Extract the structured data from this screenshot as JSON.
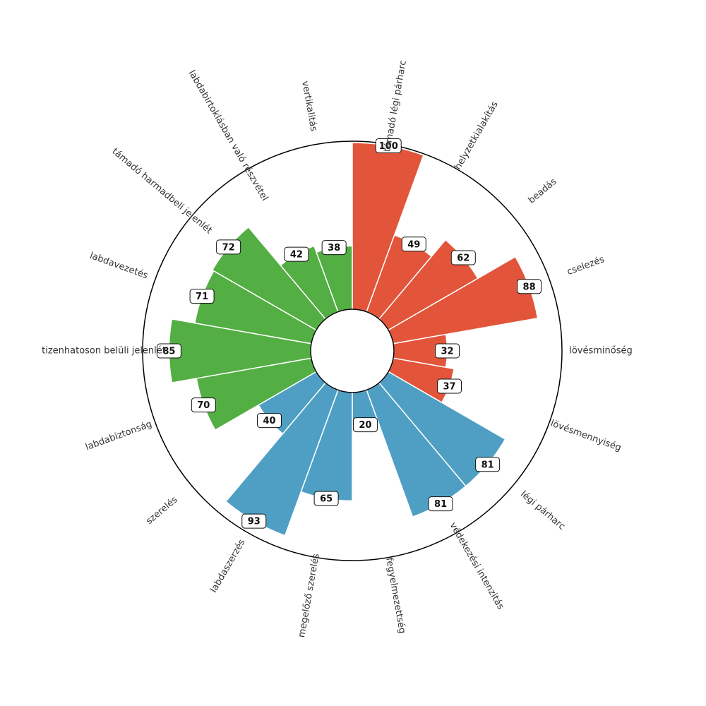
{
  "chart_data": {
    "type": "polar-bar",
    "max_value": 100,
    "colors": {
      "attack": "#e2553a",
      "defense": "#4f9fc4",
      "possession": "#53ae43"
    },
    "categories": [
      {
        "label": "támadó légi párharc",
        "value": 100,
        "group": "attack"
      },
      {
        "label": "helyzetkialakítás",
        "value": 49,
        "group": "attack"
      },
      {
        "label": "beadás",
        "value": 62,
        "group": "attack"
      },
      {
        "label": "cselezés",
        "value": 88,
        "group": "attack"
      },
      {
        "label": "lövésminőség",
        "value": 32,
        "group": "attack"
      },
      {
        "label": "lövésmennyiség",
        "value": 37,
        "group": "attack"
      },
      {
        "label": "légi párharc",
        "value": 81,
        "group": "defense"
      },
      {
        "label": "védekezési intenzitás",
        "value": 81,
        "group": "defense"
      },
      {
        "label": "fegyelmezettség",
        "value": 20,
        "group": "defense"
      },
      {
        "label": "megelőző szerelés",
        "value": 65,
        "group": "defense"
      },
      {
        "label": "labdaszerzés",
        "value": 93,
        "group": "defense"
      },
      {
        "label": "szerelés",
        "value": 40,
        "group": "defense"
      },
      {
        "label": "labdabiztonság",
        "value": 70,
        "group": "possession"
      },
      {
        "label": "tizenhatoson belüli jelenlét",
        "value": 85,
        "group": "possession"
      },
      {
        "label": "labdavezetés",
        "value": 71,
        "group": "possession"
      },
      {
        "label": "támadó harmadbeli jelenlét",
        "value": 72,
        "group": "possession"
      },
      {
        "label": "labdabirtoklásban való részvétel",
        "value": 42,
        "group": "possession"
      },
      {
        "label": "vertikalitás",
        "value": 38,
        "group": "possession"
      }
    ]
  }
}
